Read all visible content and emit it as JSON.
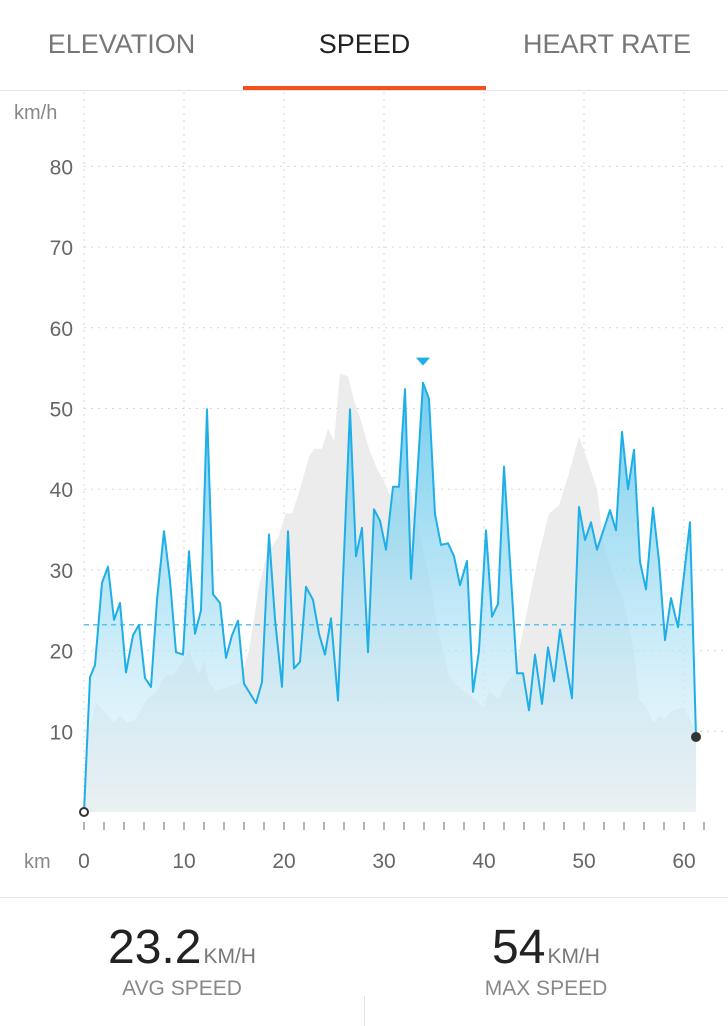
{
  "tabs": [
    {
      "label": "ELEVATION"
    },
    {
      "label": "SPEED",
      "active": true
    },
    {
      "label": "HEART RATE"
    }
  ],
  "colors": {
    "accent": "#f4511e",
    "speed_line": "#1eaee8",
    "elevation_fill": "#ececec"
  },
  "stats": {
    "avg": {
      "value": "23.2",
      "unit": "KM/H",
      "label": "AVG SPEED"
    },
    "max": {
      "value": "54",
      "unit": "KM/H",
      "label": "MAX SPEED"
    }
  },
  "chart_data": {
    "type": "line",
    "ylabel": "km/h",
    "xlabel": "km",
    "xlim": [
      0,
      62
    ],
    "ylim": [
      0,
      85
    ],
    "xticks": [
      0,
      10,
      20,
      30,
      40,
      50,
      60
    ],
    "yticks": [
      10,
      20,
      30,
      40,
      50,
      60,
      70,
      80
    ],
    "grid": true,
    "average": 23.2,
    "max_marker": {
      "x": 33.9,
      "y": 53.2
    },
    "speed": [
      [
        0,
        0
      ],
      [
        0.6,
        16.7
      ],
      [
        1.1,
        18.2
      ],
      [
        1.8,
        28.4
      ],
      [
        2.4,
        30.4
      ],
      [
        3.0,
        23.8
      ],
      [
        3.6,
        25.9
      ],
      [
        4.2,
        17.3
      ],
      [
        4.9,
        21.9
      ],
      [
        5.5,
        23.2
      ],
      [
        6.1,
        16.6
      ],
      [
        6.7,
        15.5
      ],
      [
        7.3,
        26.3
      ],
      [
        8.0,
        34.8
      ],
      [
        8.6,
        28.7
      ],
      [
        9.2,
        19.8
      ],
      [
        9.9,
        19.5
      ],
      [
        10.5,
        32.3
      ],
      [
        11.1,
        22.1
      ],
      [
        11.7,
        25.0
      ],
      [
        12.3,
        49.9
      ],
      [
        12.9,
        27.0
      ],
      [
        13.6,
        25.9
      ],
      [
        14.2,
        19.1
      ],
      [
        14.8,
        21.9
      ],
      [
        15.4,
        23.7
      ],
      [
        16.0,
        15.9
      ],
      [
        17.2,
        13.5
      ],
      [
        17.8,
        16.1
      ],
      [
        18.5,
        34.4
      ],
      [
        19.1,
        23.9
      ],
      [
        19.8,
        15.5
      ],
      [
        20.4,
        34.8
      ],
      [
        21.0,
        17.8
      ],
      [
        21.6,
        18.6
      ],
      [
        22.2,
        27.9
      ],
      [
        22.9,
        26.3
      ],
      [
        23.5,
        22.1
      ],
      [
        24.1,
        19.5
      ],
      [
        24.7,
        24.0
      ],
      [
        25.4,
        13.8
      ],
      [
        26.6,
        49.9
      ],
      [
        27.2,
        31.7
      ],
      [
        27.8,
        35.2
      ],
      [
        28.4,
        19.8
      ],
      [
        29.0,
        37.5
      ],
      [
        29.6,
        36.1
      ],
      [
        30.2,
        32.5
      ],
      [
        30.9,
        40.3
      ],
      [
        31.5,
        40.3
      ],
      [
        32.1,
        52.4
      ],
      [
        32.7,
        28.9
      ],
      [
        33.9,
        53.2
      ],
      [
        34.5,
        51.2
      ],
      [
        35.1,
        36.9
      ],
      [
        35.7,
        33.1
      ],
      [
        36.4,
        33.3
      ],
      [
        37.0,
        31.7
      ],
      [
        37.6,
        28.1
      ],
      [
        38.3,
        31.1
      ],
      [
        38.9,
        14.9
      ],
      [
        39.5,
        20.0
      ],
      [
        40.2,
        34.9
      ],
      [
        40.8,
        24.2
      ],
      [
        41.4,
        25.8
      ],
      [
        42.0,
        42.8
      ],
      [
        43.3,
        17.2
      ],
      [
        43.9,
        17.2
      ],
      [
        44.5,
        12.6
      ],
      [
        45.1,
        19.5
      ],
      [
        45.8,
        13.4
      ],
      [
        46.4,
        20.4
      ],
      [
        47.0,
        16.2
      ],
      [
        47.6,
        22.6
      ],
      [
        48.8,
        14.1
      ],
      [
        49.5,
        37.8
      ],
      [
        50.1,
        33.7
      ],
      [
        50.7,
        35.9
      ],
      [
        51.3,
        32.5
      ],
      [
        52.6,
        37.4
      ],
      [
        53.2,
        34.9
      ],
      [
        53.8,
        47.1
      ],
      [
        54.4,
        40.0
      ],
      [
        55.0,
        44.9
      ],
      [
        55.6,
        31.0
      ],
      [
        56.2,
        27.6
      ],
      [
        56.9,
        37.7
      ],
      [
        57.5,
        31.1
      ],
      [
        58.1,
        21.3
      ],
      [
        58.7,
        26.5
      ],
      [
        59.4,
        22.9
      ],
      [
        60.6,
        35.9
      ],
      [
        61.2,
        9.3
      ]
    ],
    "elevation_profile": [
      [
        0,
        0
      ],
      [
        0.2,
        9
      ],
      [
        1.2,
        13.5
      ],
      [
        2,
        12.5
      ],
      [
        3,
        11
      ],
      [
        3.6,
        12
      ],
      [
        4.3,
        11
      ],
      [
        5.2,
        11.5
      ],
      [
        6.3,
        14
      ],
      [
        7.3,
        15
      ],
      [
        8.2,
        17
      ],
      [
        9,
        17
      ],
      [
        10.5,
        20
      ],
      [
        11.5,
        17
      ],
      [
        12,
        19
      ],
      [
        12.5,
        16
      ],
      [
        13.2,
        15
      ],
      [
        14.5,
        15.5
      ],
      [
        15.5,
        16
      ],
      [
        16.5,
        20
      ],
      [
        17.5,
        28
      ],
      [
        18.3,
        32
      ],
      [
        19.4,
        34
      ],
      [
        20.2,
        37
      ],
      [
        20.8,
        37
      ],
      [
        21.6,
        40
      ],
      [
        22.5,
        44
      ],
      [
        23,
        45
      ],
      [
        23.8,
        45
      ],
      [
        24.4,
        47.5
      ],
      [
        25,
        46
      ],
      [
        25.6,
        54.3
      ],
      [
        26.4,
        54
      ],
      [
        27,
        51
      ],
      [
        27.7,
        48.5
      ],
      [
        28.5,
        45
      ],
      [
        29.3,
        42.5
      ],
      [
        30,
        41
      ],
      [
        30.5,
        39.5
      ],
      [
        31.5,
        38
      ],
      [
        32.3,
        44
      ],
      [
        33,
        37
      ],
      [
        33.8,
        33
      ],
      [
        34.7,
        28
      ],
      [
        35.5,
        22
      ],
      [
        36.5,
        17
      ],
      [
        37,
        16
      ],
      [
        38,
        15
      ],
      [
        39,
        14
      ],
      [
        40,
        13
      ],
      [
        40.5,
        15
      ],
      [
        41.5,
        14
      ],
      [
        42.2,
        16
      ],
      [
        43,
        17
      ],
      [
        43.5,
        20
      ],
      [
        44,
        23
      ],
      [
        44.8,
        28
      ],
      [
        45.5,
        32
      ],
      [
        46.5,
        37
      ],
      [
        47.5,
        38
      ],
      [
        48.5,
        42
      ],
      [
        49.5,
        46.5
      ],
      [
        50.5,
        43
      ],
      [
        51.3,
        40
      ],
      [
        52,
        33
      ],
      [
        53,
        29
      ],
      [
        54,
        26
      ],
      [
        55,
        20
      ],
      [
        55.5,
        14
      ],
      [
        56.2,
        13
      ],
      [
        57,
        11
      ],
      [
        57.5,
        12
      ],
      [
        58,
        11.5
      ],
      [
        58.8,
        12.5
      ],
      [
        60,
        13
      ],
      [
        61.2,
        10
      ],
      [
        61.2,
        0
      ]
    ]
  }
}
